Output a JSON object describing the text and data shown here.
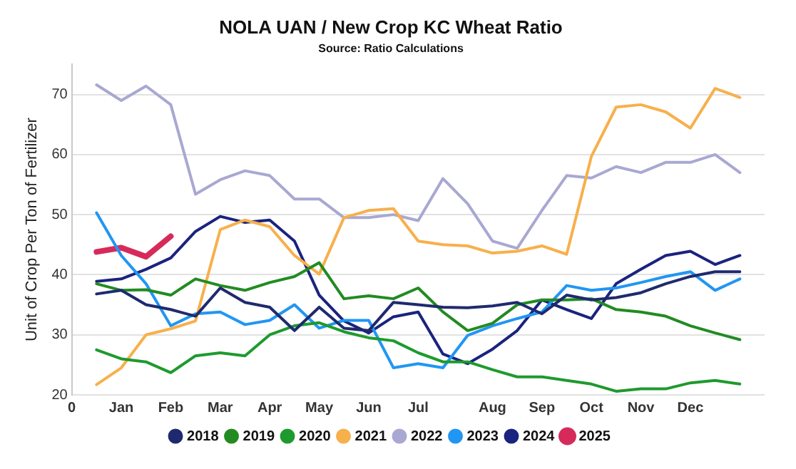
{
  "chart_data": {
    "type": "line",
    "title": "NOLA UAN / New Crop KC Wheat Ratio",
    "subtitle": "Source: Ratio Calculations",
    "ylabel": "Unit of Crop Per Ton of Fertilizer",
    "categories": [
      "0",
      null,
      "Jan",
      null,
      "Feb",
      null,
      "Mar",
      null,
      "Apr",
      null,
      "May",
      null,
      "Jun",
      null,
      "Jul",
      null,
      null,
      "Aug",
      null,
      "Sep",
      null,
      "Oct",
      null,
      "Nov",
      null,
      "Dec",
      null,
      null,
      null
    ],
    "ylim": [
      20,
      75
    ],
    "yticks": [
      20,
      30,
      40,
      50,
      60,
      70
    ],
    "grid": "y",
    "legend": "bottom",
    "marker": "none",
    "line_style": "solid",
    "series": [
      {
        "name": "2018",
        "color": "#1f2a6e",
        "values": [
          null,
          36.8,
          37.4,
          35,
          34.2,
          33.1,
          37.8,
          35.4,
          34.6,
          30.7,
          34.6,
          31.1,
          30.7,
          35.4,
          35,
          34.6,
          34.5,
          34.8,
          35.4,
          33.5,
          36.6,
          35.8,
          36.2,
          37,
          38.5,
          39.7,
          40.5,
          40.5,
          null
        ]
      },
      {
        "name": "2019",
        "color": "#228b22",
        "values": [
          null,
          38.5,
          37.4,
          37.5,
          36.6,
          39.3,
          38.2,
          37.4,
          38.7,
          39.7,
          42,
          36,
          36.5,
          36,
          37.8,
          33.8,
          30.7,
          31.9,
          35,
          35.8,
          35.8,
          36,
          34.2,
          33.8,
          33.1,
          31.5,
          30.3,
          29.2,
          null
        ]
      },
      {
        "name": "2020",
        "color": "#1e9a2e",
        "values": [
          null,
          27.5,
          26,
          25.5,
          23.7,
          26.5,
          27,
          26.5,
          30,
          31.5,
          32,
          30.5,
          29.5,
          29,
          27,
          25.5,
          25.5,
          24.2,
          23,
          23,
          22.4,
          21.8,
          20.6,
          21,
          21,
          22,
          22.4,
          21.8,
          null
        ]
      },
      {
        "name": "2021",
        "color": "#f7b04c",
        "values": [
          null,
          21.7,
          24.5,
          30,
          31,
          32.3,
          47.5,
          49.1,
          48,
          43.2,
          40.1,
          49.5,
          50.7,
          51,
          45.6,
          45,
          44.8,
          43.6,
          43.9,
          44.8,
          43.4,
          59.7,
          67.9,
          68.3,
          67.1,
          64.4,
          71,
          69.5,
          null
        ]
      },
      {
        "name": "2022",
        "color": "#a8a8d2",
        "values": [
          null,
          71.6,
          69,
          71.4,
          68.3,
          53.4,
          55.8,
          57.3,
          56.5,
          52.6,
          52.6,
          49.5,
          49.5,
          50,
          49,
          56,
          51.8,
          45.6,
          44.4,
          50.7,
          56.5,
          56.1,
          58,
          57,
          58.7,
          58.7,
          60,
          57,
          null
        ]
      },
      {
        "name": "2023",
        "color": "#2196f3",
        "values": [
          null,
          50.3,
          43.2,
          38.5,
          31.5,
          33.5,
          33.8,
          31.7,
          32.4,
          35,
          31.1,
          32.4,
          32.4,
          24.5,
          25.2,
          24.5,
          29.9,
          31.5,
          32.7,
          33.8,
          38.2,
          37.4,
          37.8,
          38.7,
          39.7,
          40.5,
          37.4,
          39.3,
          null
        ]
      },
      {
        "name": "2024",
        "color": "#1a237e",
        "values": [
          null,
          38.9,
          39.3,
          40.9,
          42.8,
          47.2,
          49.7,
          48.7,
          49.1,
          45.6,
          36.6,
          32.3,
          30.3,
          33,
          33.8,
          26.8,
          25.2,
          27.6,
          30.7,
          35.8,
          34.2,
          32.7,
          38.5,
          40.9,
          43.2,
          43.9,
          41.7,
          43.2,
          null
        ]
      },
      {
        "name": "2025",
        "color": "#d62b5a",
        "values": [
          null,
          43.8,
          44.5,
          43,
          46.4,
          null,
          null,
          null,
          null,
          null,
          null,
          null,
          null,
          null,
          null,
          null,
          null,
          null,
          null,
          null,
          null,
          null,
          null,
          null,
          null,
          null,
          null,
          null,
          null
        ]
      }
    ]
  }
}
